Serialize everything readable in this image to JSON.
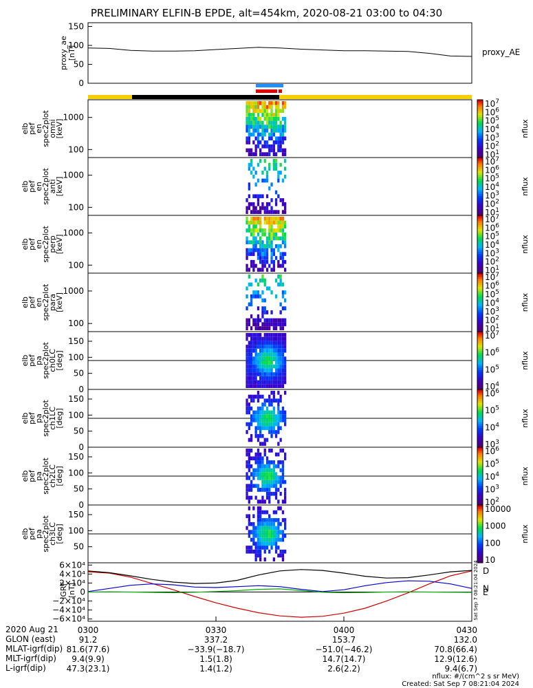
{
  "title": "PRELIMINARY ELFIN-B EPDE, alt=454km, 2020-08-21 03:00 to 04:30",
  "chart_data": [
    {
      "type": "line",
      "id": "proxy_ae",
      "ylabel": [
        "proxy_ae",
        "[nT]"
      ],
      "right_label": "proxy_AE",
      "ylim": [
        0,
        160
      ],
      "yticks": [
        "0",
        "50",
        "100",
        "150"
      ],
      "x_minutes": [
        0,
        5,
        10,
        15,
        20,
        25,
        30,
        35,
        40,
        45,
        50,
        55,
        60,
        65,
        70,
        75,
        80,
        85,
        90
      ],
      "values": [
        93,
        92,
        87,
        85,
        85,
        86,
        89,
        92,
        95,
        93,
        90,
        88,
        86,
        86,
        85,
        84,
        79,
        72,
        71
      ]
    },
    {
      "type": "heatmap",
      "id": "en_omni",
      "ylabel": [
        "elb",
        "pef",
        "en",
        "spec2plot",
        "omni",
        "[keV]"
      ],
      "yscale": "log",
      "yticks": [
        "100",
        "1000"
      ],
      "colorbar": {
        "label": "nflux",
        "ticks": [
          "10^7",
          "10^6",
          "10^5",
          "10^4",
          "10^3",
          "10^2",
          "10^1"
        ]
      }
    },
    {
      "type": "heatmap",
      "id": "en_anti",
      "ylabel": [
        "elb",
        "pef",
        "en",
        "spec2plot",
        "anti",
        "[keV]"
      ],
      "yscale": "log",
      "yticks": [
        "100",
        "1000"
      ],
      "colorbar": {
        "label": "nflux",
        "ticks": [
          "10^7",
          "10^6",
          "10^5",
          "10^4",
          "10^3",
          "10^2",
          "10^1"
        ]
      }
    },
    {
      "type": "heatmap",
      "id": "en_perp",
      "ylabel": [
        "elb",
        "pef",
        "en",
        "spec2plot",
        "perp",
        "[keV]"
      ],
      "yscale": "log",
      "yticks": [
        "100",
        "1000"
      ],
      "colorbar": {
        "label": "nflux",
        "ticks": [
          "10^7",
          "10^6",
          "10^5",
          "10^4",
          "10^3",
          "10^2",
          "10^1"
        ]
      }
    },
    {
      "type": "heatmap",
      "id": "en_para",
      "ylabel": [
        "elb",
        "pef",
        "en",
        "spec2plot",
        "para",
        "[keV]"
      ],
      "yscale": "log",
      "yticks": [
        "100",
        "1000"
      ],
      "colorbar": {
        "label": "nflux",
        "ticks": [
          "10^7",
          "10^6",
          "10^5",
          "10^4",
          "10^3",
          "10^2",
          "10^1"
        ]
      }
    },
    {
      "type": "heatmap",
      "id": "pa_ch0",
      "ylabel": [
        "elb",
        "pef",
        "pa",
        "spec2plot",
        "ch0LC",
        "[deg]"
      ],
      "ylim": [
        0,
        180
      ],
      "yticks": [
        "0",
        "50",
        "100",
        "150"
      ],
      "colorbar": {
        "label": "nflux",
        "ticks": [
          "10^7",
          "10^6",
          "10^5",
          "10^4"
        ]
      }
    },
    {
      "type": "heatmap",
      "id": "pa_ch1",
      "ylabel": [
        "elb",
        "pef",
        "pa",
        "spec2plot",
        "ch1LC",
        "[deg]"
      ],
      "ylim": [
        0,
        180
      ],
      "yticks": [
        "0",
        "50",
        "100",
        "150"
      ],
      "colorbar": {
        "label": "nflux",
        "ticks": [
          "10^6",
          "10^5",
          "10^4",
          "10^3"
        ]
      }
    },
    {
      "type": "heatmap",
      "id": "pa_ch2",
      "ylabel": [
        "elb",
        "pef",
        "pa",
        "spec2plot",
        "ch2LC",
        "[deg]"
      ],
      "ylim": [
        0,
        180
      ],
      "yticks": [
        "0",
        "50",
        "100",
        "150"
      ],
      "colorbar": {
        "label": "nflux",
        "ticks": [
          "10^6",
          "10^5",
          "10^4",
          "10^3",
          "10^2"
        ]
      }
    },
    {
      "type": "heatmap",
      "id": "pa_ch3",
      "ylabel": [
        "elb",
        "pef",
        "pa",
        "spec2plot",
        "ch3LC",
        "[deg]"
      ],
      "ylim": [
        0,
        180
      ],
      "yticks": [
        "50",
        "100",
        "150"
      ],
      "colorbar": {
        "label": "nflux",
        "ticks": [
          "10000",
          "1000",
          "100",
          "10"
        ]
      }
    },
    {
      "type": "line",
      "id": "igrf",
      "ylabel": [
        "IGRF",
        "[nT]"
      ],
      "ylim": [
        -65000,
        65000
      ],
      "yticks": [
        "6×10⁴",
        "4×10⁴",
        "2×10⁴",
        "0",
        "−2×10⁴",
        "−4×10⁴",
        "−6×10⁴"
      ],
      "ytick_values": [
        60000,
        40000,
        20000,
        0,
        -20000,
        -40000,
        -60000
      ],
      "x_minutes": [
        0,
        5,
        10,
        15,
        20,
        25,
        30,
        35,
        40,
        45,
        50,
        55,
        60,
        65,
        70,
        75,
        80,
        85,
        90
      ],
      "series": [
        {
          "name": "D",
          "color": "#cc0000",
          "values": [
            45000,
            42000,
            33000,
            19000,
            5000,
            -10000,
            -24000,
            -36000,
            -46000,
            -53000,
            -56000,
            -54000,
            -47000,
            -36000,
            -20000,
            -2000,
            18000,
            36000,
            47000
          ]
        },
        {
          "name": "N",
          "color": "#0000cc",
          "values": [
            1000,
            8000,
            15000,
            18000,
            16000,
            11000,
            10000,
            12000,
            14000,
            12000,
            6000,
            1000,
            5000,
            14000,
            21000,
            25000,
            24000,
            18000,
            8000
          ]
        },
        {
          "name": "E",
          "color": "#00aa00",
          "values": [
            0,
            500,
            0,
            -800,
            -1500,
            -500,
            1000,
            3000,
            6000,
            7000,
            3000,
            -500,
            -1500,
            -1000,
            0,
            500,
            0,
            -500,
            -800
          ]
        },
        {
          "name": "",
          "color": "#000000",
          "values": [
            47000,
            43000,
            36000,
            28000,
            22000,
            19000,
            20000,
            26000,
            38000,
            47000,
            50000,
            48000,
            42000,
            35000,
            31000,
            32000,
            38000,
            45000,
            48000
          ]
        }
      ]
    }
  ],
  "ticks_x": {
    "labels": [
      "0300",
      "0330",
      "0400",
      "0430"
    ],
    "minutes": [
      0,
      30,
      60,
      90
    ],
    "rows": [
      {
        "label": "2020 Aug 21",
        "values": [
          "0300",
          "0330",
          "0400",
          "0430"
        ]
      },
      {
        "label": "GLON (east)",
        "values": [
          "91.2",
          "337.2",
          "153.7",
          "132.0"
        ]
      },
      {
        "label": "MLAT-igrf(dip)",
        "values": [
          "81.6(77.6)",
          "−33.9(−18.7)",
          "−51.0(−46.2)",
          "70.8(66.4)"
        ]
      },
      {
        "label": "MLT-igrf(dip)",
        "values": [
          "9.4(9.9)",
          "1.5(1.8)",
          "14.7(14.7)",
          "12.9(12.6)"
        ]
      },
      {
        "label": "L-igrf(dip)",
        "values": [
          "47.3(23.1)",
          "1.4(1.2)",
          "2.6(2.2)",
          "9.4(6.7)"
        ]
      }
    ]
  },
  "footer": {
    "units": "nflux: #/(cm^2 s sr MeV)",
    "created": "Created: Sat Sep  7 08:21:04 2024",
    "side_stamp": "Sat Sep  7 08:21:04 2024"
  },
  "colors": {
    "sunlit_bar": "#f5d000",
    "eclipse_bar": "#000000",
    "science_blue": "#2090ff",
    "science_red": "#e00000"
  }
}
